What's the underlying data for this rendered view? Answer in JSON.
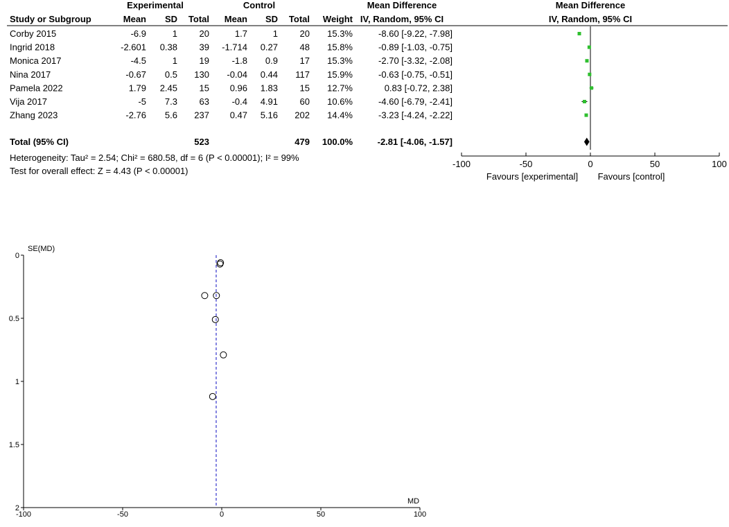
{
  "forest": {
    "headers": {
      "group_experimental": "Experimental",
      "group_control": "Control",
      "group_md": "Mean Difference",
      "group_md_plot": "Mean Difference",
      "study": "Study or Subgroup",
      "mean": "Mean",
      "sd": "SD",
      "total": "Total",
      "mean_c": "Mean",
      "sd_c": "SD",
      "total_c": "Total",
      "weight": "Weight",
      "method": "IV, Random, 95% CI",
      "method_plot": "IV, Random, 95% CI"
    },
    "studies": [
      {
        "name": "Corby 2015",
        "e_mean": "-6.9",
        "e_sd": "1",
        "e_total": "20",
        "c_mean": "1.7",
        "c_sd": "1",
        "c_total": "20",
        "weight": "15.3%",
        "ci": "-8.60 [-9.22, -7.98]",
        "md": -8.6,
        "lo": -9.22,
        "hi": -7.98
      },
      {
        "name": "Ingrid 2018",
        "e_mean": "-2.601",
        "e_sd": "0.38",
        "e_total": "39",
        "c_mean": "-1.714",
        "c_sd": "0.27",
        "c_total": "48",
        "weight": "15.8%",
        "ci": "-0.89 [-1.03, -0.75]",
        "md": -0.89,
        "lo": -1.03,
        "hi": -0.75
      },
      {
        "name": "Monica 2017",
        "e_mean": "-4.5",
        "e_sd": "1",
        "e_total": "19",
        "c_mean": "-1.8",
        "c_sd": "0.9",
        "c_total": "17",
        "weight": "15.3%",
        "ci": "-2.70 [-3.32, -2.08]",
        "md": -2.7,
        "lo": -3.32,
        "hi": -2.08
      },
      {
        "name": "Nina 2017",
        "e_mean": "-0.67",
        "e_sd": "0.5",
        "e_total": "130",
        "c_mean": "-0.04",
        "c_sd": "0.44",
        "c_total": "117",
        "weight": "15.9%",
        "ci": "-0.63 [-0.75, -0.51]",
        "md": -0.63,
        "lo": -0.75,
        "hi": -0.51
      },
      {
        "name": "Pamela 2022",
        "e_mean": "1.79",
        "e_sd": "2.45",
        "e_total": "15",
        "c_mean": "0.96",
        "c_sd": "1.83",
        "c_total": "15",
        "weight": "12.7%",
        "ci": "0.83 [-0.72, 2.38]",
        "md": 0.83,
        "lo": -0.72,
        "hi": 2.38
      },
      {
        "name": "Vija 2017",
        "e_mean": "-5",
        "e_sd": "7.3",
        "e_total": "63",
        "c_mean": "-0.4",
        "c_sd": "4.91",
        "c_total": "60",
        "weight": "10.6%",
        "ci": "-4.60 [-6.79, -2.41]",
        "md": -4.6,
        "lo": -6.79,
        "hi": -2.41
      },
      {
        "name": "Zhang 2023",
        "e_mean": "-2.76",
        "e_sd": "5.6",
        "e_total": "237",
        "c_mean": "0.47",
        "c_sd": "5.16",
        "c_total": "202",
        "weight": "14.4%",
        "ci": "-3.23 [-4.24, -2.22]",
        "md": -3.23,
        "lo": -4.24,
        "hi": -2.22
      }
    ],
    "total": {
      "name": "Total (95% CI)",
      "e_total": "523",
      "c_total": "479",
      "weight": "100.0%",
      "ci": "-2.81 [-4.06, -1.57]",
      "md": -2.81,
      "lo": -4.06,
      "hi": -1.57
    },
    "heterogeneity": "Heterogeneity: Tau² = 2.54; Chi² = 680.58, df = 6 (P < 0.00001); I² = 99%",
    "overall": "Test for overall effect: Z = 4.43 (P < 0.00001)",
    "axis_ticks": [
      "-100",
      "-50",
      "0",
      "50",
      "100"
    ],
    "axis_values": [
      -100,
      -50,
      0,
      50,
      100
    ],
    "favours_left": "Favours [experimental]",
    "favours_right": "Favours [control]",
    "colors": {
      "marker": "#2fbf2f",
      "line": "#000000"
    }
  },
  "chart_data": [
    {
      "type": "forest",
      "xlim": [
        -100,
        100
      ],
      "studies": [
        "Corby 2015",
        "Ingrid 2018",
        "Monica 2017",
        "Nina 2017",
        "Pamela 2022",
        "Vija 2017",
        "Zhang 2023"
      ],
      "md": [
        -8.6,
        -0.89,
        -2.7,
        -0.63,
        0.83,
        -4.6,
        -3.23
      ],
      "ci_low": [
        -9.22,
        -1.03,
        -3.32,
        -0.75,
        -0.72,
        -6.79,
        -4.24
      ],
      "ci_high": [
        -7.98,
        -0.75,
        -2.08,
        -0.51,
        2.38,
        -2.41,
        -2.22
      ],
      "pooled": {
        "md": -2.81,
        "ci_low": -4.06,
        "ci_high": -1.57
      }
    },
    {
      "type": "scatter",
      "xlabel": "MD",
      "ylabel": "SE(MD)",
      "xlim": [
        -100,
        100
      ],
      "ylim": [
        0,
        2
      ],
      "y_inverted": true,
      "x_ticks": [
        "-100",
        "-50",
        "0",
        "50",
        "100"
      ],
      "x_tick_values": [
        -100,
        -50,
        0,
        50,
        100
      ],
      "y_ticks": [
        "0",
        "0.5",
        "1",
        "1.5",
        "2"
      ],
      "y_tick_values": [
        0,
        0.5,
        1,
        1.5,
        2
      ],
      "points": [
        {
          "x": -8.6,
          "y": 0.32
        },
        {
          "x": -0.89,
          "y": 0.07
        },
        {
          "x": -2.7,
          "y": 0.32
        },
        {
          "x": -0.63,
          "y": 0.06
        },
        {
          "x": 0.83,
          "y": 0.79
        },
        {
          "x": -4.6,
          "y": 1.12
        },
        {
          "x": -3.23,
          "y": 0.51
        }
      ],
      "pooled_md": -2.81,
      "colors": {
        "points": "#000000",
        "pooled_line": "#3333cc",
        "axes": "#000000"
      }
    }
  ]
}
